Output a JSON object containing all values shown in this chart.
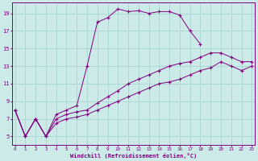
{
  "xlabel": "Windchill (Refroidissement éolien,°C)",
  "bg_color": "#cceae8",
  "line_color": "#800080",
  "grid_color": "#aad4d2",
  "x_upper": [
    0,
    1,
    2,
    3,
    4,
    5,
    6,
    7,
    8,
    9,
    10,
    11,
    12,
    13,
    14,
    15,
    16,
    17,
    18
  ],
  "y_upper": [
    8,
    5,
    7,
    5,
    7.5,
    8,
    8.5,
    13,
    18,
    18.5,
    19.5,
    19.2,
    19.3,
    19.0,
    19.2,
    19.2,
    18.8,
    17.0,
    15.5
  ],
  "x_mid": [
    0,
    1,
    2,
    3,
    4,
    5,
    6,
    7,
    8,
    9,
    10,
    11,
    12,
    13,
    14,
    15,
    16,
    17,
    18,
    19,
    20,
    21,
    22,
    23
  ],
  "y_mid": [
    8,
    5,
    7,
    5,
    7.0,
    7.5,
    7.8,
    8.0,
    8.8,
    9.5,
    10.2,
    11.0,
    11.5,
    12.0,
    12.5,
    13.0,
    13.3,
    13.5,
    14.0,
    14.5,
    14.5,
    14.0,
    13.5,
    13.5
  ],
  "x_lower": [
    0,
    1,
    2,
    3,
    4,
    5,
    6,
    7,
    8,
    9,
    10,
    11,
    12,
    13,
    14,
    15,
    16,
    17,
    18,
    19,
    20,
    21,
    22,
    23
  ],
  "y_lower": [
    8,
    5,
    7,
    5,
    6.5,
    7.0,
    7.2,
    7.5,
    8.0,
    8.5,
    9.0,
    9.5,
    10.0,
    10.5,
    11.0,
    11.2,
    11.5,
    12.0,
    12.5,
    12.8,
    13.5,
    13.0,
    12.5,
    13.0
  ],
  "xlim": [
    -0.3,
    23.3
  ],
  "ylim": [
    4.0,
    20.2
  ],
  "x_ticks": [
    0,
    1,
    2,
    3,
    4,
    5,
    6,
    7,
    8,
    9,
    10,
    11,
    12,
    13,
    14,
    15,
    16,
    17,
    18,
    19,
    20,
    21,
    22,
    23
  ],
  "y_ticks": [
    5,
    7,
    9,
    11,
    13,
    15,
    17,
    19
  ]
}
